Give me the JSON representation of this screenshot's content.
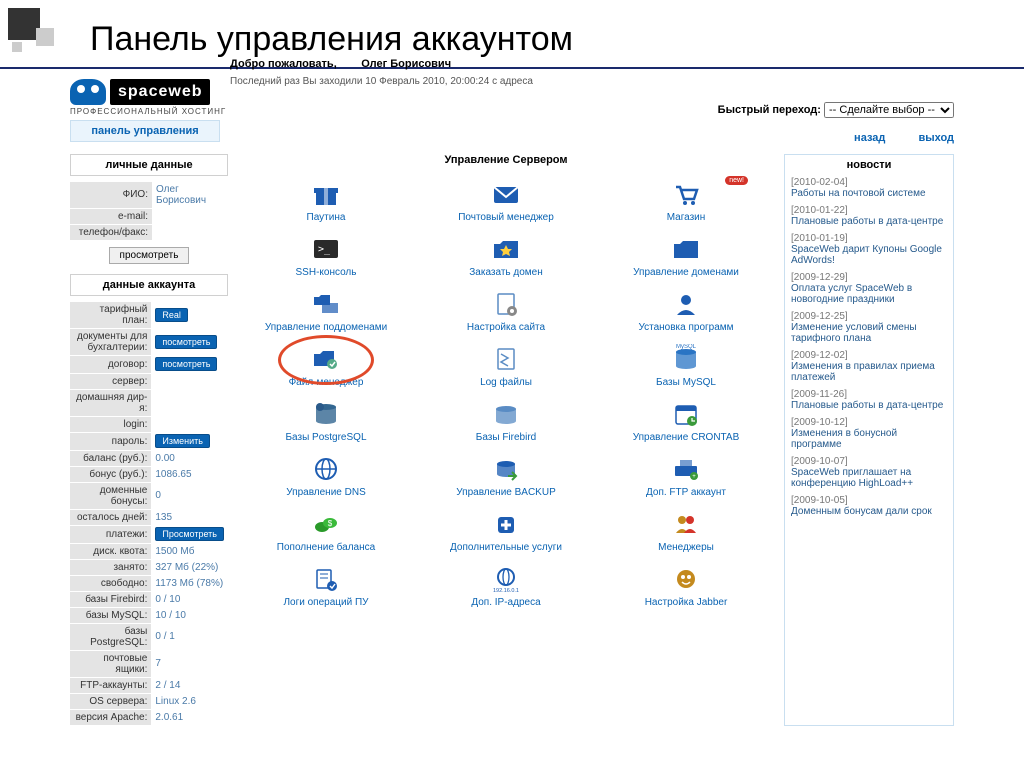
{
  "slide_title": "Панель управления аккаунтом",
  "logo": {
    "brand": "spaceweb",
    "tagline": "ПРОФЕССИОНАЛЬНЫЙ ХОСТИНГ",
    "panel_label": "панель управления"
  },
  "quick_nav": {
    "label": "Быстрый переход:",
    "placeholder": "-- Сделайте выбор --"
  },
  "nav_links": {
    "back": "назад",
    "exit": "выход"
  },
  "welcome": {
    "label": "Добро пожаловать,",
    "user": "Олег Борисович",
    "last_login": "Последний раз Вы заходили 10 Февраль 2010, 20:00:24 с адреса"
  },
  "sections": {
    "personal": "личные данные",
    "account": "данные аккаунта",
    "server": "Управление Сервером",
    "news": "новости"
  },
  "personal": [
    {
      "label": "ФИО:",
      "value": "Олег Борисович"
    },
    {
      "label": "e-mail:",
      "value": ""
    },
    {
      "label": "телефон/факс:",
      "value": ""
    }
  ],
  "view_btn": "просмотреть",
  "account_rows": [
    {
      "label": "тарифный план:",
      "btn": "Real"
    },
    {
      "label": "документы для бухгалтерии:",
      "btn": "посмотреть"
    },
    {
      "label": "договор:",
      "btn": "посмотреть"
    },
    {
      "label": "сервер:",
      "value": ""
    },
    {
      "label": "домашняя дир-я:",
      "value": ""
    },
    {
      "label": "login:",
      "value": ""
    },
    {
      "label": "пароль:",
      "btn": "Изменить"
    },
    {
      "label": "баланс (руб.):",
      "value": "0.00"
    },
    {
      "label": "бонус (руб.):",
      "value": "1086.65"
    },
    {
      "label": "доменные бонусы:",
      "value": "0"
    },
    {
      "label": "осталось дней:",
      "value": "135"
    },
    {
      "label": "платежи:",
      "btn": "Просмотреть"
    },
    {
      "label": "диск. квота:",
      "value": "1500 Мб"
    },
    {
      "label": "занято:",
      "value": "327 Мб (22%)"
    },
    {
      "label": "свободно:",
      "value": "1173 Мб (78%)"
    },
    {
      "label": "базы Firebird:",
      "value": "0 / 10"
    },
    {
      "label": "базы MySQL:",
      "value": "10 / 10"
    },
    {
      "label": "базы PostgreSQL:",
      "value": "0 / 1"
    },
    {
      "label": "почтовые ящики:",
      "value": "7"
    },
    {
      "label": "FTP-аккаунты:",
      "value": "2 / 14"
    },
    {
      "label": "OS сервера:",
      "value": "Linux 2.6"
    },
    {
      "label": "версия Apache:",
      "value": "2.0.61"
    }
  ],
  "icons": [
    {
      "label": "Паутина",
      "icon": "gift",
      "color": "#1e5db2"
    },
    {
      "label": "Почтовый менеджер",
      "icon": "mail",
      "color": "#1e5db2"
    },
    {
      "label": "Магазин",
      "icon": "cart",
      "color": "#1e5db2",
      "new": true
    },
    {
      "label": "SSH-консоль",
      "icon": "terminal",
      "color": "#2a2a2a"
    },
    {
      "label": "Заказать домен",
      "icon": "star-folder",
      "color": "#1e5db2"
    },
    {
      "label": "Управление доменами",
      "icon": "folder",
      "color": "#1e5db2"
    },
    {
      "label": "Управление поддоменами",
      "icon": "subfolder",
      "color": "#1e5db2"
    },
    {
      "label": "Настройка сайта",
      "icon": "page-gear",
      "color": "#5a8cc4"
    },
    {
      "label": "Установка программ",
      "icon": "user",
      "color": "#1e5db2"
    },
    {
      "label": "Файл-менеджер",
      "icon": "file-mgr",
      "color": "#1e5db2",
      "highlight": true
    },
    {
      "label": "Log файлы",
      "icon": "log",
      "color": "#5a8cc4"
    },
    {
      "label": "Базы MySQL",
      "icon": "db",
      "color": "#2a74c4",
      "sublabel": "MySQL"
    },
    {
      "label": "Базы PostgreSQL",
      "icon": "db-pg",
      "color": "#336791"
    },
    {
      "label": "Базы Firebird",
      "icon": "db-fb",
      "color": "#5a8cc4"
    },
    {
      "label": "Управление CRONTAB",
      "icon": "cron",
      "color": "#1e5db2"
    },
    {
      "label": "Управление DNS",
      "icon": "dns",
      "color": "#1e5db2"
    },
    {
      "label": "Управление BACKUP",
      "icon": "backup",
      "color": "#1e5db2"
    },
    {
      "label": "Доп. FTP аккаунт",
      "icon": "ftp",
      "color": "#1e5db2"
    },
    {
      "label": "Пополнение баланса",
      "icon": "balance",
      "color": "#2a9a2a"
    },
    {
      "label": "Дополнительные услуги",
      "icon": "extra",
      "color": "#1e5db2"
    },
    {
      "label": "Менеджеры",
      "icon": "managers",
      "color": "#c48a1e"
    },
    {
      "label": "Логи операций ПУ",
      "icon": "cp-log",
      "color": "#1e5db2"
    },
    {
      "label": "Доп. IP-адреса",
      "icon": "ip",
      "color": "#1e5db2",
      "sublabel": "192.16.0.1"
    },
    {
      "label": "Настройка Jabber",
      "icon": "jabber",
      "color": "#c48a1e"
    }
  ],
  "news": [
    {
      "date": "[2010-02-04]",
      "title": "Работы на почтовой системе"
    },
    {
      "date": "[2010-01-22]",
      "title": "Плановые работы в дата-центре"
    },
    {
      "date": "[2010-01-19]",
      "title": "SpaceWeb дарит Купоны Google AdWords!"
    },
    {
      "date": "[2009-12-29]",
      "title": "Оплата услуг SpaceWeb в новогодние праздники"
    },
    {
      "date": "[2009-12-25]",
      "title": "Изменение условий смены тарифного плана"
    },
    {
      "date": "[2009-12-02]",
      "title": "Изменения в правилах приема платежей"
    },
    {
      "date": "[2009-11-26]",
      "title": "Плановые работы в дата-центре"
    },
    {
      "date": "[2009-10-12]",
      "title": "Изменения в бонусной программе"
    },
    {
      "date": "[2009-10-07]",
      "title": "SpaceWeb приглашает на конференцию HighLoad++"
    },
    {
      "date": "[2009-10-05]",
      "title": "Доменным бонусам дали срок"
    }
  ],
  "badge_new": "new!"
}
